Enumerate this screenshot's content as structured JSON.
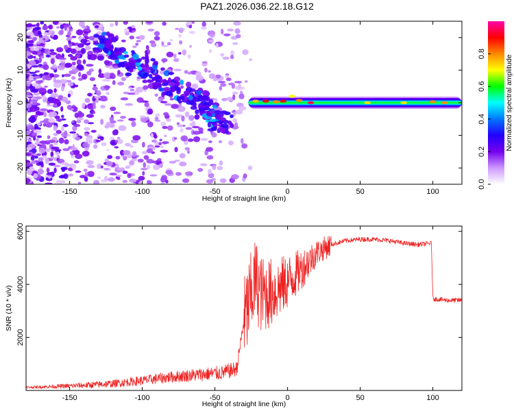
{
  "title": "PAZ1.2026.036.22.18.G12",
  "chart_data": [
    {
      "type": "heatmap",
      "name": "spectrogram",
      "xlabel": "Height of straight line (km)",
      "ylabel": "Frequency (Hz)",
      "xlim": [
        -180,
        120
      ],
      "ylim": [
        -25,
        25
      ],
      "xticks": [
        -150,
        -100,
        -50,
        0,
        50,
        100
      ],
      "yticks": [
        -20,
        -10,
        0,
        10,
        20
      ],
      "colorbar": {
        "label": "Normalized spectral amplitude",
        "range": [
          0,
          1
        ],
        "ticks": [
          "0.0",
          "0.2",
          "0.4",
          "0.6",
          "0.8"
        ],
        "colormap": [
          "#ffffff",
          "#cc99ff",
          "#7700ee",
          "#2200ff",
          "#0077ff",
          "#00ffff",
          "#00ff00",
          "#ffff00",
          "#ff8800",
          "#ff0000",
          "#ff00aa"
        ]
      },
      "features": [
        {
          "region": "scattered low-amplitude signal",
          "x_range": [
            -180,
            -30
          ],
          "freq_range": [
            -25,
            25
          ]
        },
        {
          "region": "descending bright trace",
          "points": [
            [
              -130,
              19
            ],
            [
              -110,
              13
            ],
            [
              -90,
              8
            ],
            [
              -70,
              3
            ],
            [
              -55,
              -2
            ],
            [
              -42,
              -7
            ]
          ]
        },
        {
          "region": "steady carrier line",
          "x_range": [
            -27,
            120
          ],
          "freq": 0,
          "peak_amplitude": 1.0
        }
      ]
    },
    {
      "type": "line",
      "name": "snr",
      "xlabel": "Height of straight line (km)",
      "ylabel": "SNR (10 * v/v)",
      "xlim": [
        -180,
        120
      ],
      "ylim": [
        0,
        6200
      ],
      "xticks": [
        -150,
        -100,
        -50,
        0,
        50,
        100
      ],
      "yticks": [
        2000,
        4000,
        6000
      ],
      "color": "#ee2222",
      "series": [
        {
          "name": "SNR",
          "x": [
            -180,
            -160,
            -140,
            -120,
            -100,
            -80,
            -60,
            -45,
            -35,
            -30,
            -27,
            -22,
            -18,
            -10,
            0,
            10,
            20,
            30,
            40,
            50,
            60,
            70,
            80,
            90,
            99,
            100,
            101,
            110,
            120
          ],
          "y": [
            100,
            120,
            150,
            200,
            300,
            420,
            500,
            550,
            700,
            2500,
            3200,
            4200,
            3600,
            3700,
            4100,
            4600,
            5200,
            5500,
            5650,
            5700,
            5700,
            5650,
            5550,
            5500,
            5550,
            3500,
            3450,
            3400,
            3400
          ]
        }
      ]
    }
  ]
}
